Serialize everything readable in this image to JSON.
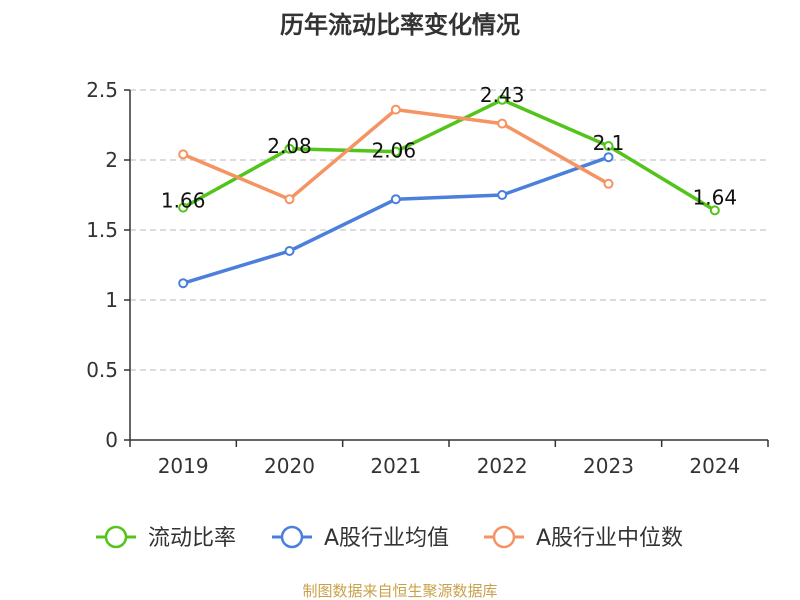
{
  "chart_data": {
    "type": "line",
    "title": "历年流动比率变化情况",
    "categories": [
      "2019",
      "2020",
      "2021",
      "2022",
      "2023",
      "2024"
    ],
    "ylim": [
      0,
      2.5
    ],
    "yticks": [
      "0",
      "0.5",
      "1",
      "1.5",
      "2",
      "2.5"
    ],
    "grid": true,
    "legend_position": "bottom",
    "series": [
      {
        "name": "流动比率",
        "color": "#52c41a",
        "values": [
          1.66,
          2.08,
          2.06,
          2.43,
          2.1,
          1.64
        ],
        "labels": [
          "1.66",
          "2.08",
          "2.06",
          "2.43",
          "2.1",
          "1.64"
        ]
      },
      {
        "name": "A股行业均值",
        "color": "#4a7fdc",
        "values": [
          1.12,
          1.35,
          1.72,
          1.75,
          2.02,
          null
        ]
      },
      {
        "name": "A股行业中位数",
        "color": "#f59362",
        "values": [
          2.04,
          1.72,
          2.36,
          2.26,
          1.83,
          null
        ]
      }
    ]
  },
  "source_text": "制图数据来自恒生聚源数据库"
}
